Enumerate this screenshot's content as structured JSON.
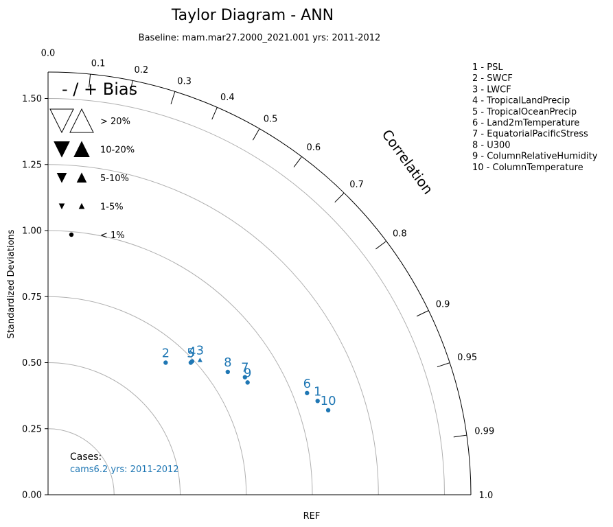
{
  "chart_data": {
    "type": "scatter",
    "title": "Taylor Diagram - ANN",
    "subtitle": "Baseline: mam.mar27.2000_2021.001  yrs: 2011-2012",
    "ylabel": "Standardized Deviations",
    "xlabel": "REF",
    "correlation_label": "Correlation",
    "ylim": [
      0,
      1.6
    ],
    "y_ticks": [
      {
        "value": 0.0,
        "label": "0.00"
      },
      {
        "value": 0.25,
        "label": "0.25"
      },
      {
        "value": 0.5,
        "label": "0.50"
      },
      {
        "value": 0.75,
        "label": "0.75"
      },
      {
        "value": 1.0,
        "label": "1.00"
      },
      {
        "value": 1.25,
        "label": "1.25"
      },
      {
        "value": 1.5,
        "label": "1.50"
      }
    ],
    "std_arcs": [
      0.25,
      0.5,
      0.75,
      1.0,
      1.25,
      1.5
    ],
    "correlation_ticks": [
      {
        "value": 0.0,
        "label": "0.0"
      },
      {
        "value": 0.1,
        "label": "0.1"
      },
      {
        "value": 0.2,
        "label": "0.2"
      },
      {
        "value": 0.3,
        "label": "0.3"
      },
      {
        "value": 0.4,
        "label": "0.4"
      },
      {
        "value": 0.5,
        "label": "0.5"
      },
      {
        "value": 0.6,
        "label": "0.6"
      },
      {
        "value": 0.7,
        "label": "0.7"
      },
      {
        "value": 0.8,
        "label": "0.8"
      },
      {
        "value": 0.9,
        "label": "0.9"
      },
      {
        "value": 0.95,
        "label": "0.95"
      },
      {
        "value": 0.99,
        "label": "0.99"
      },
      {
        "value": 1.0,
        "label": "1.0"
      }
    ],
    "bias_legend": {
      "title": "- / + Bias",
      "items": [
        {
          "label": "> 20%",
          "marker": "triangle-pair",
          "size": "xlarge"
        },
        {
          "label": "10-20%",
          "marker": "triangle-pair-filled",
          "size": "large"
        },
        {
          "label": "5-10%",
          "marker": "triangle-pair-filled",
          "size": "medium"
        },
        {
          "label": "1-5%",
          "marker": "triangle-pair-filled",
          "size": "small"
        },
        {
          "label": "< 1%",
          "marker": "circle",
          "size": "small"
        }
      ]
    },
    "variables": [
      "1 - PSL",
      "2 - SWCF",
      "3 - LWCF",
      "4 - TropicalLandPrecip",
      "5 - TropicalOceanPrecip",
      "6 - Land2mTemperature",
      "7 - EquatorialPacificStress",
      "8 - U300",
      "9 - ColumnRelativeHumidity",
      "10 - ColumnTemperature"
    ],
    "cases_title": "Cases:",
    "cases": [
      {
        "name": "cams6.2  yrs: 2011-2012",
        "color": "#1f77b4"
      }
    ],
    "series": [
      {
        "name": "cams6.2  yrs: 2011-2012",
        "color": "#1f77b4",
        "points": [
          {
            "label": "1",
            "x": 1.02,
            "y": 0.355,
            "marker": "circle"
          },
          {
            "label": "2",
            "x": 0.445,
            "y": 0.5,
            "marker": "circle"
          },
          {
            "label": "3",
            "x": 0.575,
            "y": 0.51,
            "marker": "triangle-up"
          },
          {
            "label": "4",
            "x": 0.545,
            "y": 0.505,
            "marker": "circle"
          },
          {
            "label": "5",
            "x": 0.54,
            "y": 0.5,
            "marker": "circle"
          },
          {
            "label": "6",
            "x": 0.98,
            "y": 0.385,
            "marker": "circle"
          },
          {
            "label": "7",
            "x": 0.745,
            "y": 0.445,
            "marker": "circle"
          },
          {
            "label": "8",
            "x": 0.68,
            "y": 0.465,
            "marker": "circle"
          },
          {
            "label": "9",
            "x": 0.755,
            "y": 0.425,
            "marker": "circle"
          },
          {
            "label": "10",
            "x": 1.06,
            "y": 0.32,
            "marker": "circle"
          }
        ]
      }
    ]
  }
}
